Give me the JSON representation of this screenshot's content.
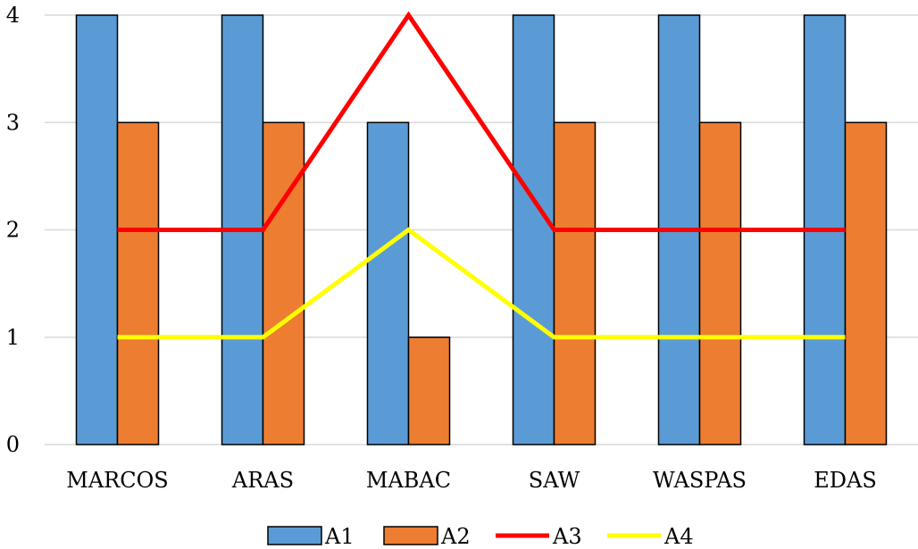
{
  "chart_data": {
    "type": "bar",
    "categories": [
      "MARCOS",
      "ARAS",
      "MABAC",
      "SAW",
      "WASPAS",
      "EDAS"
    ],
    "ylim": [
      0,
      4
    ],
    "yticks": [
      0,
      1,
      2,
      3,
      4
    ],
    "grid": "horizontal",
    "legend_position": "bottom",
    "series": [
      {
        "name": "A1",
        "kind": "bar",
        "color": "#5b9bd5",
        "values": [
          4,
          4,
          3,
          4,
          4,
          4
        ]
      },
      {
        "name": "A2",
        "kind": "bar",
        "color": "#ed7d31",
        "values": [
          3,
          3,
          1,
          3,
          3,
          3
        ]
      },
      {
        "name": "A3",
        "kind": "line",
        "color": "#ff0000",
        "values": [
          2,
          2,
          4,
          2,
          2,
          2
        ]
      },
      {
        "name": "A4",
        "kind": "line",
        "color": "#ffff00",
        "values": [
          1,
          1,
          2,
          1,
          1,
          1
        ]
      }
    ]
  }
}
